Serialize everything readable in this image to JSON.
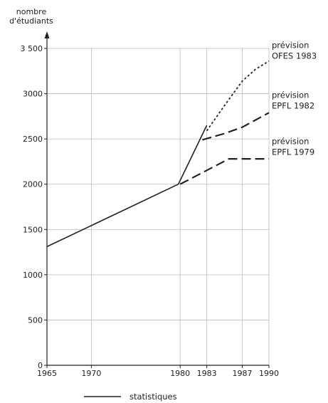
{
  "chart_data": {
    "type": "line",
    "ylabel": [
      "nombre",
      "d'étudiants"
    ],
    "xlim": [
      1965,
      1990
    ],
    "ylim": [
      0,
      3500
    ],
    "grid": true,
    "x_ticks": [
      {
        "value": 1965,
        "label": "1965"
      },
      {
        "value": 1970,
        "label": "1970"
      },
      {
        "value": 1980,
        "label": "1980"
      },
      {
        "value": 1983,
        "label": "1983"
      },
      {
        "value": 1987,
        "label": "1987"
      },
      {
        "value": 1990,
        "label": "1990"
      }
    ],
    "y_ticks": [
      {
        "value": 0,
        "label": "0"
      },
      {
        "value": 500,
        "label": "500"
      },
      {
        "value": 1000,
        "label": "1000"
      },
      {
        "value": 1500,
        "label": "1500"
      },
      {
        "value": 2000,
        "label": "2000"
      },
      {
        "value": 2500,
        "label": "2500"
      },
      {
        "value": 3000,
        "label": "3000"
      },
      {
        "value": 3500,
        "label": "3 500"
      }
    ],
    "series": [
      {
        "name": "statistiques",
        "style": "solid",
        "x": [
          1965,
          1979.8,
          1983
        ],
        "y": [
          1310,
          2000,
          2650
        ]
      },
      {
        "name": "prévision OFES 1983",
        "style": "dotted",
        "x": [
          1983,
          1985,
          1987,
          1988.5,
          1990
        ],
        "y": [
          2590,
          2870,
          3140,
          3270,
          3360
        ]
      },
      {
        "name": "prévision EPFL 1982",
        "style": "dashed",
        "x": [
          1982.5,
          1985,
          1987,
          1990
        ],
        "y": [
          2490,
          2560,
          2630,
          2790
        ]
      },
      {
        "name": "prévision EPFL 1979",
        "style": "dashed",
        "x": [
          1980,
          1985.5,
          1990
        ],
        "y": [
          2000,
          2280,
          2280
        ]
      }
    ],
    "annotations": [
      {
        "lines": [
          "prévision",
          "OFES 1983"
        ],
        "x": 1990,
        "y": 3330
      },
      {
        "lines": [
          "prévision",
          "EPFL 1982"
        ],
        "x": 1990,
        "y": 2780
      },
      {
        "lines": [
          "prévision",
          "EPFL 1979"
        ],
        "x": 1990,
        "y": 2270
      }
    ],
    "legend": {
      "placement": "bottom-left",
      "entries": [
        "statistiques"
      ]
    }
  }
}
